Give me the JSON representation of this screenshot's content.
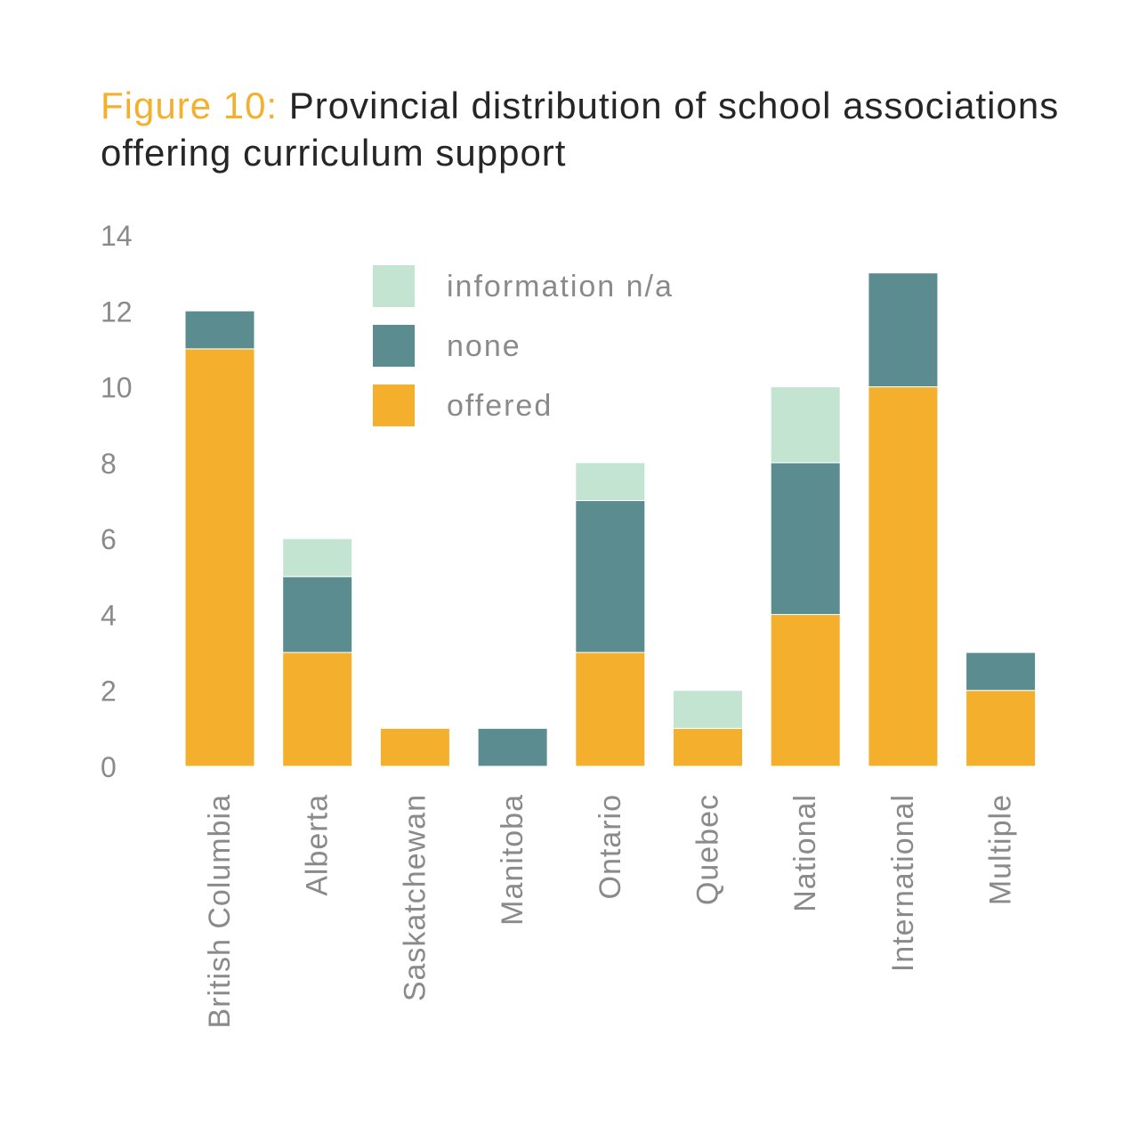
{
  "title": {
    "figure_label": "Figure 10:",
    "text": "Provincial distribution of school associations offering curriculum support"
  },
  "colors": {
    "offered": "#f4b02d",
    "none": "#5b8c90",
    "information_na": "#c3e4d1",
    "tick": "#8a8a8a",
    "title_accent": "#f4b02d"
  },
  "chart_data": {
    "type": "bar",
    "stacked": true,
    "title": "Provincial distribution of school associations offering curriculum support",
    "xlabel": "",
    "ylabel": "",
    "ylim": [
      0,
      14
    ],
    "yticks": [
      0,
      2,
      4,
      6,
      8,
      10,
      12,
      14
    ],
    "grid": false,
    "legend_position": "top-center",
    "categories": [
      "British Columbia",
      "Alberta",
      "Saskatchewan",
      "Manitoba",
      "Ontario",
      "Quebec",
      "National",
      "International",
      "Multiple"
    ],
    "series": [
      {
        "key": "offered",
        "name": "offered",
        "values": [
          11,
          3,
          1,
          0,
          3,
          1,
          4,
          10,
          2
        ]
      },
      {
        "key": "none",
        "name": "none",
        "values": [
          1,
          2,
          0,
          1,
          4,
          0,
          4,
          3,
          1
        ]
      },
      {
        "key": "information_na",
        "name": "information n/a",
        "values": [
          0,
          1,
          0,
          0,
          1,
          1,
          2,
          0,
          0
        ]
      }
    ],
    "legend_order": [
      "information_na",
      "none",
      "offered"
    ]
  }
}
